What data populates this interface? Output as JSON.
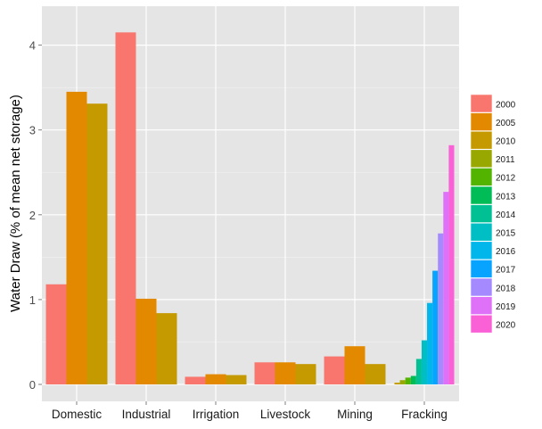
{
  "chart_data": {
    "type": "bar",
    "title": "",
    "xlabel": "",
    "ylabel": "Water Draw (% of mean net storage)",
    "ylim": [
      0,
      4.2
    ],
    "yticks": [
      0,
      1,
      2,
      3,
      4
    ],
    "grid": true,
    "legend_position": "right",
    "categories": [
      "Domestic",
      "Industrial",
      "Irrigation",
      "Livestock",
      "Mining",
      "Fracking"
    ],
    "legend": [
      {
        "year": "2000",
        "color": "#F8766D"
      },
      {
        "year": "2005",
        "color": "#E38900"
      },
      {
        "year": "2010",
        "color": "#C49A00"
      },
      {
        "year": "2011",
        "color": "#99A800"
      },
      {
        "year": "2012",
        "color": "#53B400"
      },
      {
        "year": "2013",
        "color": "#00BC56"
      },
      {
        "year": "2014",
        "color": "#00C094"
      },
      {
        "year": "2015",
        "color": "#00BFC4"
      },
      {
        "year": "2016",
        "color": "#00B6EB"
      },
      {
        "year": "2017",
        "color": "#06A4FF"
      },
      {
        "year": "2018",
        "color": "#A58AFF"
      },
      {
        "year": "2019",
        "color": "#DF70F8"
      },
      {
        "year": "2020",
        "color": "#FB61D7"
      }
    ],
    "groups": [
      {
        "category": "Domestic",
        "bars": [
          {
            "year": "2000",
            "value": 1.18
          },
          {
            "year": "2005",
            "value": 3.45
          },
          {
            "year": "2010",
            "value": 3.31
          }
        ]
      },
      {
        "category": "Industrial",
        "bars": [
          {
            "year": "2000",
            "value": 4.15
          },
          {
            "year": "2005",
            "value": 1.01
          },
          {
            "year": "2010",
            "value": 0.84
          }
        ]
      },
      {
        "category": "Irrigation",
        "bars": [
          {
            "year": "2000",
            "value": 0.09
          },
          {
            "year": "2005",
            "value": 0.12
          },
          {
            "year": "2010",
            "value": 0.11
          }
        ]
      },
      {
        "category": "Livestock",
        "bars": [
          {
            "year": "2000",
            "value": 0.26
          },
          {
            "year": "2005",
            "value": 0.26
          },
          {
            "year": "2010",
            "value": 0.24
          }
        ]
      },
      {
        "category": "Mining",
        "bars": [
          {
            "year": "2000",
            "value": 0.33
          },
          {
            "year": "2005",
            "value": 0.45
          },
          {
            "year": "2010",
            "value": 0.24
          }
        ]
      },
      {
        "category": "Fracking",
        "bars": [
          {
            "year": "2010",
            "value": 0.02
          },
          {
            "year": "2011",
            "value": 0.05
          },
          {
            "year": "2012",
            "value": 0.08
          },
          {
            "year": "2013",
            "value": 0.1
          },
          {
            "year": "2014",
            "value": 0.3
          },
          {
            "year": "2015",
            "value": 0.52
          },
          {
            "year": "2016",
            "value": 0.96
          },
          {
            "year": "2017",
            "value": 1.34
          },
          {
            "year": "2018",
            "value": 1.78
          },
          {
            "year": "2019",
            "value": 2.27
          },
          {
            "year": "2020",
            "value": 2.82
          }
        ]
      }
    ]
  }
}
